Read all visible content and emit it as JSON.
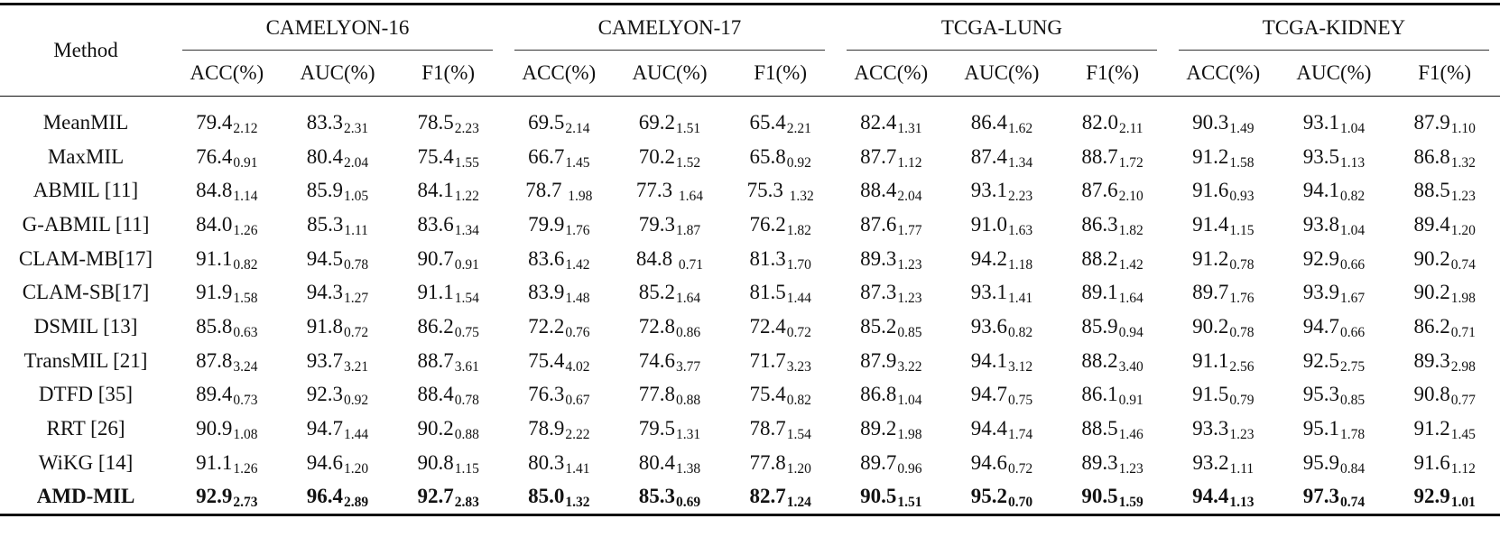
{
  "table": {
    "method_header": "Method",
    "datasets": [
      "CAMELYON-16",
      "CAMELYON-17",
      "TCGA-LUNG",
      "TCGA-KIDNEY"
    ],
    "metrics": [
      "ACC(%)",
      "AUC(%)",
      "F1(%)"
    ],
    "rows": [
      {
        "method": "MeanMIL",
        "bold": false,
        "cells": [
          [
            "79.4",
            "2.12"
          ],
          [
            "83.3",
            "2.31"
          ],
          [
            "78.5",
            "2.23"
          ],
          [
            "69.5",
            "2.14"
          ],
          [
            "69.2",
            "1.51"
          ],
          [
            "65.4",
            "2.21"
          ],
          [
            "82.4",
            "1.31"
          ],
          [
            "86.4",
            "1.62"
          ],
          [
            "82.0",
            "2.11"
          ],
          [
            "90.3",
            "1.49"
          ],
          [
            "93.1",
            "1.04"
          ],
          [
            "87.9",
            "1.10"
          ]
        ]
      },
      {
        "method": "MaxMIL",
        "bold": false,
        "cells": [
          [
            "76.4",
            "0.91"
          ],
          [
            "80.4",
            "2.04"
          ],
          [
            "75.4",
            "1.55"
          ],
          [
            "66.7",
            "1.45"
          ],
          [
            "70.2",
            "1.52"
          ],
          [
            "65.8",
            "0.92"
          ],
          [
            "87.7",
            "1.12"
          ],
          [
            "87.4",
            "1.34"
          ],
          [
            "88.7",
            "1.72"
          ],
          [
            "91.2",
            "1.58"
          ],
          [
            "93.5",
            "1.13"
          ],
          [
            "86.8",
            "1.32"
          ]
        ]
      },
      {
        "method": "ABMIL [11]",
        "bold": false,
        "cells": [
          [
            "84.8",
            "1.14"
          ],
          [
            "85.9",
            "1.05"
          ],
          [
            "84.1",
            "1.22"
          ],
          [
            "78.7 ",
            "1.98"
          ],
          [
            "77.3 ",
            "1.64"
          ],
          [
            "75.3 ",
            "1.32"
          ],
          [
            "88.4",
            "2.04"
          ],
          [
            "93.1",
            "2.23"
          ],
          [
            "87.6",
            "2.10"
          ],
          [
            "91.6",
            "0.93"
          ],
          [
            "94.1",
            "0.82"
          ],
          [
            "88.5",
            "1.23"
          ]
        ]
      },
      {
        "method": "G-ABMIL [11]",
        "bold": false,
        "cells": [
          [
            "84.0",
            "1.26"
          ],
          [
            "85.3",
            "1.11"
          ],
          [
            "83.6",
            "1.34"
          ],
          [
            "79.9",
            "1.76"
          ],
          [
            "79.3",
            "1.87"
          ],
          [
            "76.2",
            "1.82"
          ],
          [
            "87.6",
            "1.77"
          ],
          [
            "91.0",
            "1.63"
          ],
          [
            "86.3",
            "1.82"
          ],
          [
            "91.4",
            "1.15"
          ],
          [
            "93.8",
            "1.04"
          ],
          [
            "89.4",
            "1.20"
          ]
        ]
      },
      {
        "method": "CLAM-MB[17]",
        "bold": false,
        "cells": [
          [
            "91.1",
            "0.82"
          ],
          [
            "94.5",
            "0.78"
          ],
          [
            "90.7",
            "0.91"
          ],
          [
            "83.6",
            "1.42"
          ],
          [
            "84.8 ",
            "0.71"
          ],
          [
            "81.3",
            "1.70"
          ],
          [
            "89.3",
            "1.23"
          ],
          [
            "94.2",
            "1.18"
          ],
          [
            "88.2",
            "1.42"
          ],
          [
            "91.2",
            "0.78"
          ],
          [
            "92.9",
            "0.66"
          ],
          [
            "90.2",
            "0.74"
          ]
        ]
      },
      {
        "method": "CLAM-SB[17]",
        "bold": false,
        "cells": [
          [
            "91.9",
            "1.58"
          ],
          [
            "94.3",
            "1.27"
          ],
          [
            "91.1",
            "1.54"
          ],
          [
            "83.9",
            "1.48"
          ],
          [
            "85.2",
            "1.64"
          ],
          [
            "81.5",
            "1.44"
          ],
          [
            "87.3",
            "1.23"
          ],
          [
            "93.1",
            "1.41"
          ],
          [
            "89.1",
            "1.64"
          ],
          [
            "89.7",
            "1.76"
          ],
          [
            "93.9",
            "1.67"
          ],
          [
            "90.2",
            "1.98"
          ]
        ]
      },
      {
        "method": "DSMIL [13]",
        "bold": false,
        "cells": [
          [
            "85.8",
            "0.63"
          ],
          [
            "91.8",
            "0.72"
          ],
          [
            "86.2",
            "0.75"
          ],
          [
            "72.2",
            "0.76"
          ],
          [
            "72.8",
            "0.86"
          ],
          [
            "72.4",
            "0.72"
          ],
          [
            "85.2",
            "0.85"
          ],
          [
            "93.6",
            "0.82"
          ],
          [
            "85.9",
            "0.94"
          ],
          [
            "90.2",
            "0.78"
          ],
          [
            "94.7",
            "0.66"
          ],
          [
            "86.2",
            "0.71"
          ]
        ]
      },
      {
        "method": "TransMIL [21]",
        "bold": false,
        "cells": [
          [
            "87.8",
            "3.24"
          ],
          [
            "93.7",
            "3.21"
          ],
          [
            "88.7",
            "3.61"
          ],
          [
            "75.4",
            "4.02"
          ],
          [
            "74.6",
            "3.77"
          ],
          [
            "71.7",
            "3.23"
          ],
          [
            "87.9",
            "3.22"
          ],
          [
            "94.1",
            "3.12"
          ],
          [
            "88.2",
            "3.40"
          ],
          [
            "91.1",
            "2.56"
          ],
          [
            "92.5",
            "2.75"
          ],
          [
            "89.3",
            "2.98"
          ]
        ]
      },
      {
        "method": "DTFD [35]",
        "bold": false,
        "cells": [
          [
            "89.4",
            "0.73"
          ],
          [
            "92.3",
            "0.92"
          ],
          [
            "88.4",
            "0.78"
          ],
          [
            "76.3",
            "0.67"
          ],
          [
            "77.8",
            "0.88"
          ],
          [
            "75.4",
            "0.82"
          ],
          [
            "86.8",
            "1.04"
          ],
          [
            "94.7",
            "0.75"
          ],
          [
            "86.1",
            "0.91"
          ],
          [
            "91.5",
            "0.79"
          ],
          [
            "95.3",
            "0.85"
          ],
          [
            "90.8",
            "0.77"
          ]
        ]
      },
      {
        "method": "RRT [26]",
        "bold": false,
        "cells": [
          [
            "90.9",
            "1.08"
          ],
          [
            "94.7",
            "1.44"
          ],
          [
            "90.2",
            "0.88"
          ],
          [
            "78.9",
            "2.22"
          ],
          [
            "79.5",
            "1.31"
          ],
          [
            "78.7",
            "1.54"
          ],
          [
            "89.2",
            "1.98"
          ],
          [
            "94.4",
            "1.74"
          ],
          [
            "88.5",
            "1.46"
          ],
          [
            "93.3",
            "1.23"
          ],
          [
            "95.1",
            "1.78"
          ],
          [
            "91.2",
            "1.45"
          ]
        ]
      },
      {
        "method": "WiKG [14]",
        "bold": false,
        "cells": [
          [
            "91.1",
            "1.26"
          ],
          [
            "94.6",
            "1.20"
          ],
          [
            "90.8",
            "1.15"
          ],
          [
            "80.3",
            "1.41"
          ],
          [
            "80.4",
            "1.38"
          ],
          [
            "77.8",
            "1.20"
          ],
          [
            "89.7",
            "0.96"
          ],
          [
            "94.6",
            "0.72"
          ],
          [
            "89.3",
            "1.23"
          ],
          [
            "93.2",
            "1.11"
          ],
          [
            "95.9",
            "0.84"
          ],
          [
            "91.6",
            "1.12"
          ]
        ]
      },
      {
        "method": "AMD-MIL",
        "bold": true,
        "cells": [
          [
            "92.9",
            "2.73"
          ],
          [
            "96.4",
            "2.89"
          ],
          [
            "92.7",
            "2.83"
          ],
          [
            "85.0",
            "1.32"
          ],
          [
            "85.3",
            "0.69"
          ],
          [
            "82.7",
            "1.24"
          ],
          [
            "90.5",
            "1.51"
          ],
          [
            "95.2",
            "0.70"
          ],
          [
            "90.5",
            "1.59"
          ],
          [
            "94.4",
            "1.13"
          ],
          [
            "97.3",
            "0.74"
          ],
          [
            "92.9",
            "1.01"
          ]
        ]
      }
    ]
  }
}
